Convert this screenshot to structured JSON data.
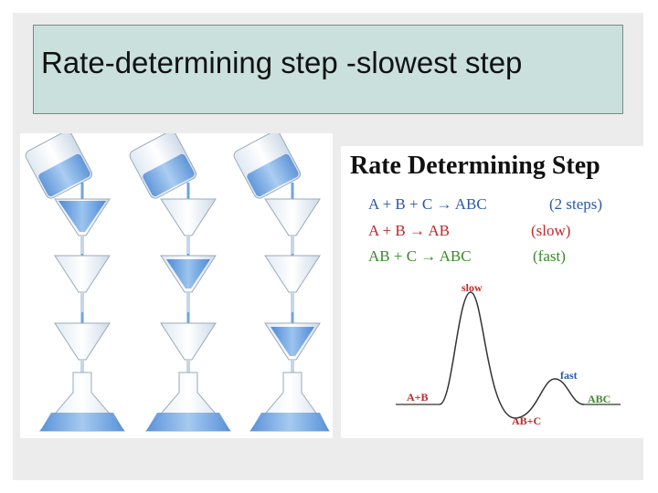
{
  "title": "Rate-determining step -slowest step",
  "diagram": {
    "heading": "Rate Determining Step",
    "overall": {
      "eq": "A + B + C → ABC",
      "note": "(2 steps)"
    },
    "step1": {
      "eq": "A + B → AB",
      "note": "(slow)"
    },
    "step2": {
      "eq": "AB + C → ABC",
      "note": "(fast)"
    },
    "labels": {
      "slow": "slow",
      "fast": "fast",
      "reactants": "A+B",
      "intermediate": "AB+C",
      "product": "ABC"
    }
  },
  "colors": {
    "title_bg": "#c9e0dd",
    "liquid": "#6ea4e0",
    "blue_eq": "#2a5aa8",
    "red_eq": "#c0282a",
    "green_eq": "#3a8a2a"
  }
}
